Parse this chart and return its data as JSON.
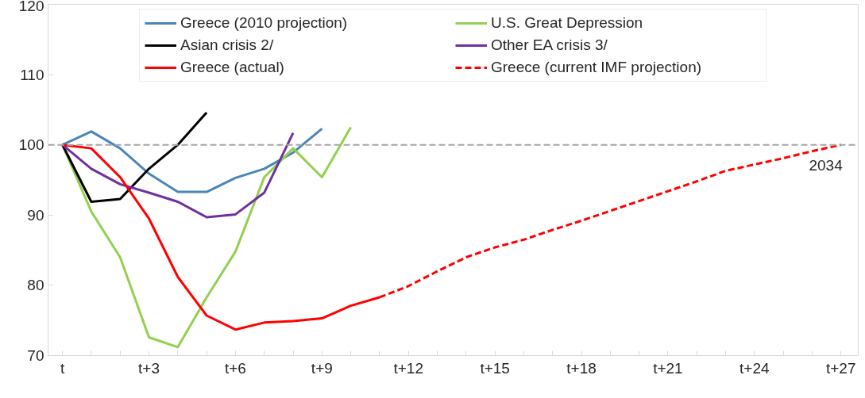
{
  "chart_data": {
    "type": "line",
    "ylim": [
      70,
      120
    ],
    "categories": [
      "t",
      null,
      null,
      "t+3",
      null,
      null,
      "t+6",
      null,
      null,
      "t+9",
      null,
      null,
      "t+12",
      null,
      null,
      "t+15",
      null,
      null,
      "t+18",
      null,
      null,
      "t+21",
      null,
      null,
      "t+24",
      null,
      null,
      "t+27"
    ],
    "yticks": [
      70,
      80,
      90,
      100,
      110,
      120
    ],
    "grid": false,
    "legend": "top",
    "marker": "none",
    "ref_lines": [
      {
        "axis": "y",
        "value": 100,
        "label": null,
        "color": "#a6a6a6",
        "line_style": "dashed"
      }
    ],
    "annotations": [
      {
        "text": "2034",
        "x": "t+27",
        "y": 100
      }
    ],
    "series": [
      {
        "name": "Greece (2010 projection)",
        "color": "#4a86b8",
        "line_style": "solid",
        "values": [
          100,
          101.9,
          99.5,
          95.9,
          93.3,
          93.3,
          95.3,
          96.6,
          98.9,
          102.3,
          null,
          null,
          null,
          null,
          null,
          null,
          null,
          null,
          null,
          null,
          null,
          null,
          null,
          null,
          null,
          null,
          null,
          null
        ]
      },
      {
        "name": "U.S. Great Depression",
        "color": "#92d050",
        "line_style": "solid",
        "values": [
          100,
          90.5,
          84.0,
          72.6,
          71.2,
          78.3,
          84.8,
          95.4,
          99.5,
          95.4,
          102.5,
          null,
          null,
          null,
          null,
          null,
          null,
          null,
          null,
          null,
          null,
          null,
          null,
          null,
          null,
          null,
          null,
          null
        ]
      },
      {
        "name": "Asian crisis 2/",
        "color": "#000000",
        "line_style": "solid",
        "values": [
          100,
          91.9,
          92.3,
          96.6,
          100,
          104.6,
          null,
          null,
          null,
          null,
          null,
          null,
          null,
          null,
          null,
          null,
          null,
          null,
          null,
          null,
          null,
          null,
          null,
          null,
          null,
          null,
          null,
          null
        ]
      },
      {
        "name": "Other EA crisis 3/",
        "color": "#7030a0",
        "line_style": "solid",
        "values": [
          100,
          96.6,
          94.4,
          93.2,
          91.9,
          89.7,
          90.1,
          93.2,
          101.7,
          null,
          null,
          null,
          null,
          null,
          null,
          null,
          null,
          null,
          null,
          null,
          null,
          null,
          null,
          null,
          null,
          null,
          null,
          null
        ]
      },
      {
        "name": "Greece (actual)",
        "color": "#ff0000",
        "line_style": "solid",
        "values": [
          100,
          99.5,
          95.4,
          89.5,
          81.2,
          75.7,
          73.7,
          74.7,
          74.9,
          75.3,
          77.1,
          78.3,
          null,
          null,
          null,
          null,
          null,
          null,
          null,
          null,
          null,
          null,
          null,
          null,
          null,
          null,
          null,
          null
        ]
      },
      {
        "name": "Greece (current IMF projection)",
        "color": "#ff0000",
        "line_style": "dashed",
        "values": [
          null,
          null,
          null,
          null,
          null,
          null,
          null,
          null,
          null,
          null,
          null,
          78.3,
          79.9,
          82.0,
          84.0,
          85.4,
          86.5,
          87.9,
          89.2,
          90.6,
          92.0,
          93.4,
          94.8,
          96.3,
          97.2,
          98.1,
          99.1,
          100
        ]
      }
    ]
  }
}
